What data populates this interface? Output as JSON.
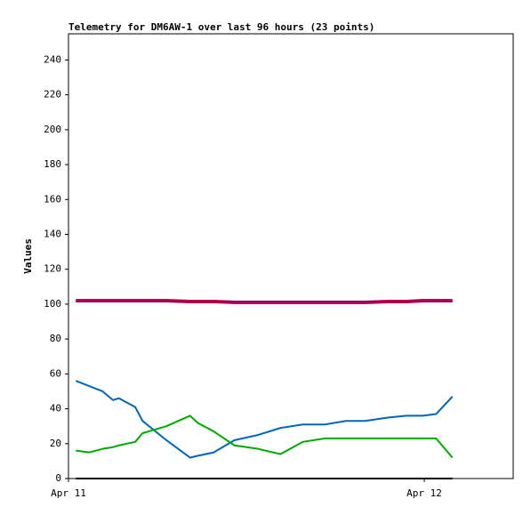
{
  "chart_data": {
    "type": "line",
    "title": "Telemetry for DM6AW-1 over last 96 hours (23 points)",
    "y_label": "Values",
    "x": [
      0.5,
      1.4,
      2.3,
      3,
      3.4,
      4.5,
      5,
      6.6,
      8.2,
      8.7,
      9.8,
      11.2,
      12.8,
      14.3,
      15.8,
      17.3,
      18.7,
      20,
      21.6,
      22.8,
      23.9,
      24.8,
      25.9
    ],
    "xlim": [
      0,
      30
    ],
    "xticks": [
      {
        "value": 0,
        "label": "Apr 11"
      },
      {
        "value": 24,
        "label": "Apr 12"
      }
    ],
    "ylim": [
      0,
      255
    ],
    "yticks": [
      0,
      20,
      40,
      60,
      80,
      100,
      120,
      140,
      160,
      180,
      200,
      220,
      240
    ],
    "series": [
      {
        "color": "#cc0033",
        "width": 4,
        "values": [
          102,
          102,
          102,
          102,
          102,
          102,
          102,
          102,
          101.5,
          101.5,
          101.5,
          101,
          101,
          101,
          101,
          101,
          101,
          101,
          101.5,
          101.5,
          102,
          102,
          102
        ]
      },
      {
        "color": "#660099",
        "width": 1.5,
        "values": [
          101.5,
          101.5,
          101.5,
          101.5,
          101.5,
          101.5,
          101.5,
          101.5,
          101.5,
          101.5,
          101.5,
          101.5,
          101.5,
          101.5,
          101.5,
          101.5,
          101.5,
          101.5,
          101.5,
          101.5,
          101.5,
          101.5,
          101.5
        ]
      },
      {
        "color": "#0066bb",
        "width": 2,
        "values": [
          56,
          53,
          50,
          45,
          46,
          41,
          33,
          22,
          12,
          13,
          15,
          22,
          25,
          29,
          31,
          31,
          33,
          33,
          35,
          36,
          36,
          37,
          47
        ]
      },
      {
        "color": "#00aa00",
        "width": 2,
        "values": [
          16,
          15,
          17,
          18,
          19,
          21,
          26,
          30,
          36,
          32,
          27,
          19,
          17,
          14,
          21,
          23,
          23,
          23,
          23,
          23,
          23,
          23,
          12
        ]
      },
      {
        "color": "#000000",
        "width": 2,
        "values": [
          0,
          0,
          0,
          0,
          0,
          0,
          0,
          0,
          0,
          0,
          0,
          0,
          0,
          0,
          0,
          0,
          0,
          0,
          0,
          0,
          0,
          0,
          0
        ]
      }
    ]
  }
}
